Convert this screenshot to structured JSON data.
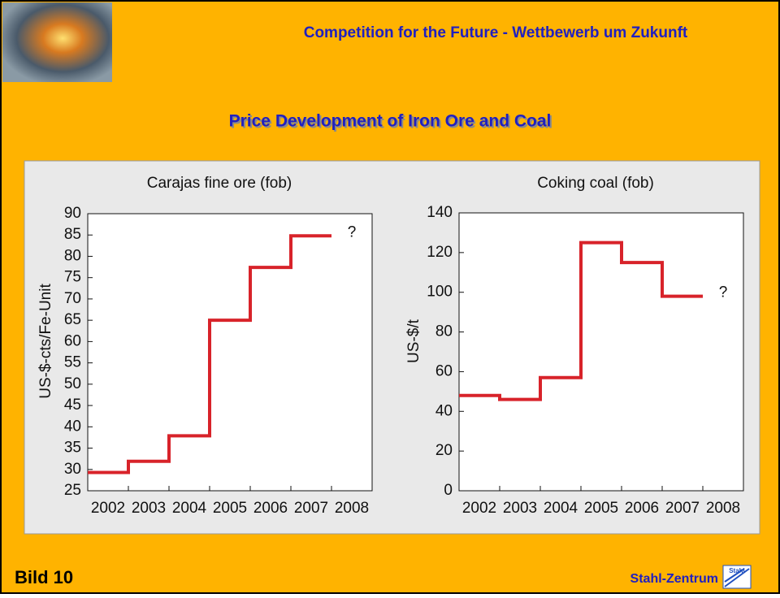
{
  "header": {
    "title": "Competition for the Future - Wettbewerb um Zukunft",
    "subtitle": "Price Development of Iron Ore and Coal"
  },
  "footer": {
    "left": "Bild 10",
    "right": "Stahl-Zentrum",
    "logo": "Stahl"
  },
  "chart_data": [
    {
      "type": "step",
      "title": "Carajas fine ore (fob)",
      "ylabel": "US-$-cts/Fe-Unit",
      "categories": [
        "2002",
        "2003",
        "2004",
        "2005",
        "2006",
        "2007",
        "2008"
      ],
      "values": [
        29.3,
        31.9,
        37.9,
        65,
        77.4,
        84.8,
        null
      ],
      "color": "#d8232a",
      "ylim": [
        25,
        90
      ],
      "yticks": [
        25,
        30,
        35,
        40,
        45,
        50,
        55,
        60,
        65,
        70,
        75,
        80,
        85,
        90
      ],
      "annotation": "?"
    },
    {
      "type": "step",
      "title": "Coking coal (fob)",
      "ylabel": "US-$/t",
      "categories": [
        "2002",
        "2003",
        "2004",
        "2005",
        "2006",
        "2007",
        "2008"
      ],
      "values": [
        48,
        46,
        57,
        125,
        115,
        98,
        null
      ],
      "color": "#d8232a",
      "ylim": [
        0,
        140
      ],
      "yticks": [
        0,
        20,
        40,
        60,
        80,
        100,
        120,
        140
      ],
      "annotation": "?"
    }
  ]
}
